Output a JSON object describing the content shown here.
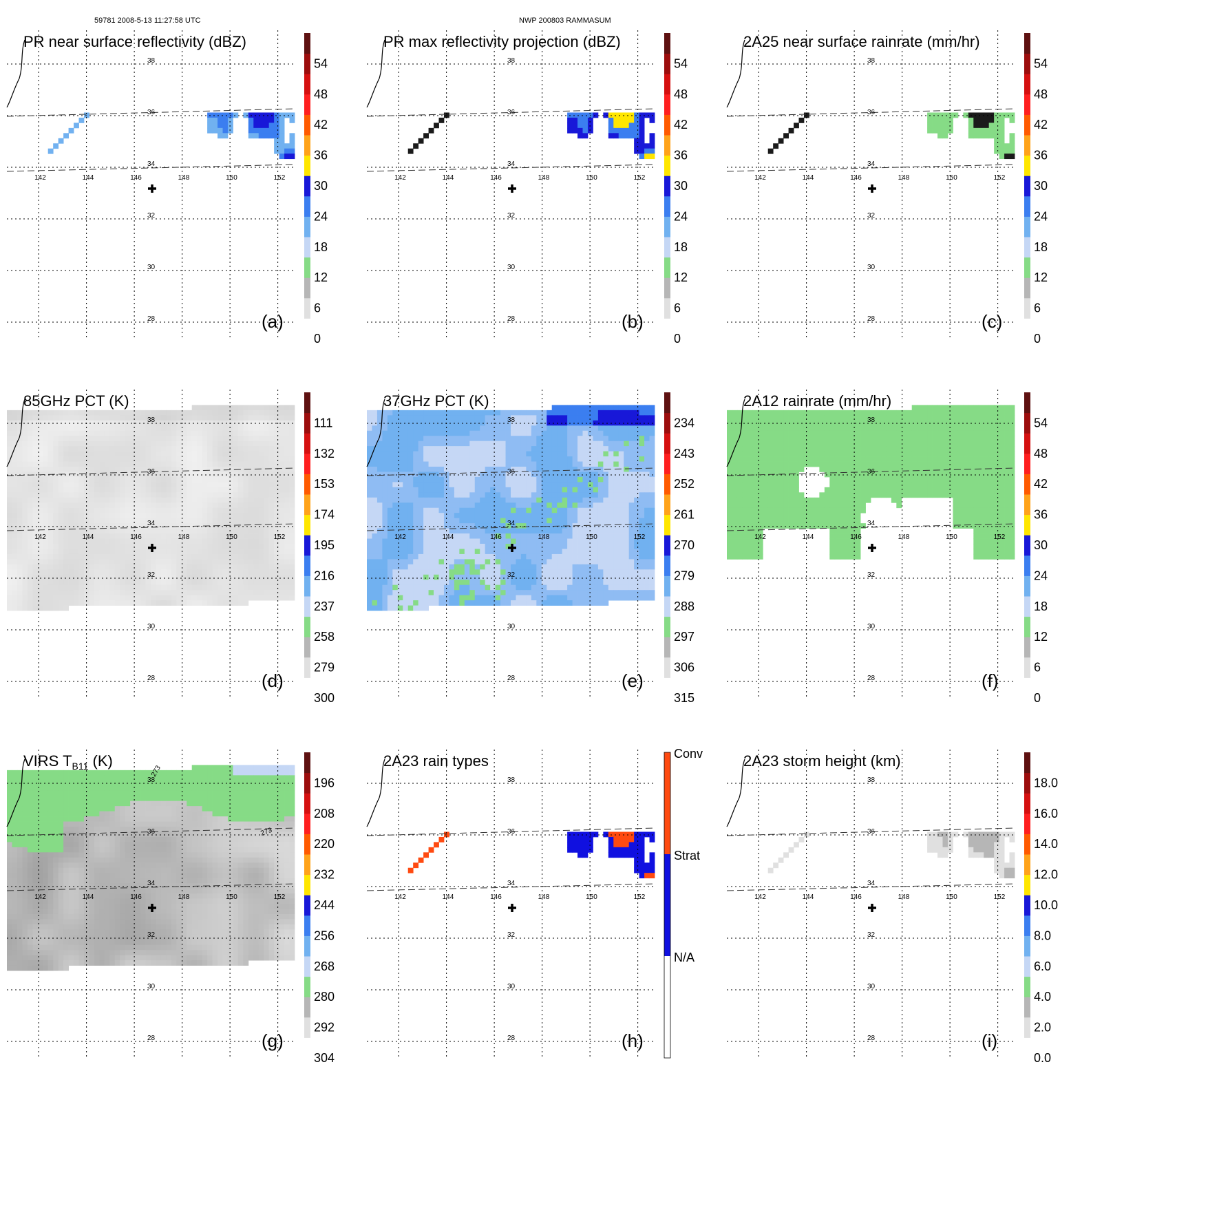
{
  "header": {
    "left": "59781 2008-5-13 11:27:58 UTC",
    "center": "NWP 200803 RAMMASUM"
  },
  "chart_data": [
    {
      "type": "heatmap",
      "panel": "a",
      "title": "PR near surface reflectivity (dBZ)",
      "label": "(a)",
      "x_ticks": [
        "142",
        "144",
        "146",
        "148",
        "150",
        "152"
      ],
      "y_ticks": [
        "38",
        "36",
        "34",
        "32",
        "30",
        "28"
      ],
      "colorbar": {
        "labels": [
          "0",
          "6",
          "12",
          "18",
          "24",
          "30",
          "36",
          "42",
          "48",
          "54"
        ]
      },
      "field": "pr",
      "valid_region": "swath"
    },
    {
      "type": "heatmap",
      "panel": "b",
      "title": "PR max reflectivity projection (dBZ)",
      "label": "(b)",
      "x_ticks": [
        "142",
        "144",
        "146",
        "148",
        "150",
        "152"
      ],
      "y_ticks": [
        "38",
        "36",
        "34",
        "32",
        "30",
        "28"
      ],
      "colorbar": {
        "labels": [
          "0",
          "6",
          "12",
          "18",
          "24",
          "30",
          "36",
          "42",
          "48",
          "54"
        ]
      },
      "field": "prmax",
      "valid_region": "swath"
    },
    {
      "type": "heatmap",
      "panel": "c",
      "title": "2A25 near surface rainrate (mm/hr)",
      "label": "(c)",
      "x_ticks": [
        "142",
        "144",
        "146",
        "148",
        "150",
        "152"
      ],
      "y_ticks": [
        "38",
        "36",
        "34",
        "32",
        "30",
        "28"
      ],
      "colorbar": {
        "labels": [
          "0",
          "6",
          "12",
          "18",
          "24",
          "30",
          "36",
          "42",
          "48",
          "54"
        ]
      },
      "field": "rain25",
      "valid_region": "swath"
    },
    {
      "type": "heatmap",
      "panel": "d",
      "title": "85GHz PCT (K)",
      "label": "(d)",
      "x_ticks": [
        "142",
        "144",
        "146",
        "148",
        "150",
        "152"
      ],
      "y_ticks": [
        "38",
        "36",
        "34",
        "32",
        "30",
        "28"
      ],
      "colorbar": {
        "labels": [
          "300",
          "279",
          "258",
          "237",
          "216",
          "195",
          "174",
          "153",
          "132",
          "111"
        ]
      },
      "field": "pct85",
      "valid_region": "wide"
    },
    {
      "type": "heatmap",
      "panel": "e",
      "title": "37GHz PCT (K)",
      "label": "(e)",
      "x_ticks": [
        "142",
        "144",
        "146",
        "148",
        "150",
        "152"
      ],
      "y_ticks": [
        "38",
        "36",
        "34",
        "32",
        "30",
        "28"
      ],
      "colorbar": {
        "labels": [
          "315",
          "306",
          "297",
          "288",
          "279",
          "270",
          "261",
          "252",
          "243",
          "234"
        ]
      },
      "field": "pct37",
      "valid_region": "wide"
    },
    {
      "type": "heatmap",
      "panel": "f",
      "title": "2A12 rainrate (mm/hr)",
      "label": "(f)",
      "x_ticks": [
        "142",
        "144",
        "146",
        "148",
        "150",
        "152"
      ],
      "y_ticks": [
        "38",
        "36",
        "34",
        "32",
        "30",
        "28"
      ],
      "colorbar": {
        "labels": [
          "0",
          "6",
          "12",
          "18",
          "24",
          "30",
          "36",
          "42",
          "48",
          "54"
        ]
      },
      "field": "rain12",
      "valid_region": "wide"
    },
    {
      "type": "heatmap",
      "panel": "g",
      "title_main": "VIRS T",
      "title_sub": "B11",
      "title_unit": " (K)",
      "label": "(g)",
      "x_ticks": [
        "142",
        "144",
        "146",
        "148",
        "150",
        "152"
      ],
      "y_ticks": [
        "38",
        "36",
        "34",
        "32",
        "30",
        "28"
      ],
      "colorbar": {
        "labels": [
          "304",
          "292",
          "280",
          "268",
          "256",
          "244",
          "232",
          "220",
          "208",
          "196"
        ]
      },
      "contour_labels": [
        "273",
        "273"
      ],
      "field": "virs",
      "valid_region": "wide"
    },
    {
      "type": "heatmap",
      "panel": "h",
      "title": "2A23 rain types",
      "label": "(h)",
      "x_ticks": [
        "142",
        "144",
        "146",
        "148",
        "150",
        "152"
      ],
      "y_ticks": [
        "38",
        "36",
        "34",
        "32",
        "30",
        "28"
      ],
      "categories": [
        "N/A",
        "Strat",
        "Conv"
      ],
      "field": "types",
      "valid_region": "swath"
    },
    {
      "type": "heatmap",
      "panel": "i",
      "title": "2A23 storm height (km)",
      "label": "(i)",
      "x_ticks": [
        "142",
        "144",
        "146",
        "148",
        "150",
        "152"
      ],
      "y_ticks": [
        "38",
        "36",
        "34",
        "32",
        "30",
        "28"
      ],
      "colorbar": {
        "labels": [
          "0.0",
          "2.0",
          "4.0",
          "6.0",
          "8.0",
          "10.0",
          "12.0",
          "14.0",
          "16.0",
          "18.0"
        ]
      },
      "field": "height",
      "valid_region": "swath"
    }
  ],
  "colors": {
    "scale": [
      "#ffffff",
      "#e0e0e0",
      "#b6b6b6",
      "#86db86",
      "#c5d7f5",
      "#71b1f0",
      "#3b7ef0",
      "#1818d8",
      "#ffe600",
      "#ffa31a",
      "#ff5a00",
      "#ff1f1f",
      "#d51010",
      "#9c0d0d",
      "#5e1111"
    ],
    "types": {
      "N/A": "#ffffff",
      "Strat": "#1010e0",
      "Conv": "#ff4a10"
    },
    "marker": "#000000"
  }
}
